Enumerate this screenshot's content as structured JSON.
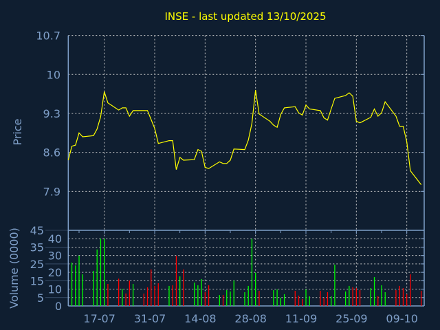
{
  "title": "INSE - last updated 13/10/2025",
  "colors": {
    "background": "#0f1e30",
    "axis": "#7f9fc8",
    "text": "#7f9fc8",
    "grid": "#c8c8c8",
    "price_line": "#ffff00",
    "title": "#ffff00",
    "volume_up": "#00ff00",
    "volume_down": "#ff0000"
  },
  "chart_data": [
    {
      "type": "line",
      "title": "INSE - last updated 13/10/2025",
      "ylabel": "Price",
      "ylim": [
        7.2,
        10.7
      ],
      "yticks": [
        "10.7",
        "10",
        "9.3",
        "8.6",
        "7.9"
      ],
      "ytick_values": [
        10.7,
        10.0,
        9.3,
        8.6,
        7.9
      ],
      "grid": true,
      "x": [
        "2025-07-07",
        "2025-07-08",
        "2025-07-09",
        "2025-07-10",
        "2025-07-11",
        "2025-07-14",
        "2025-07-15",
        "2025-07-16",
        "2025-07-17",
        "2025-07-18",
        "2025-07-21",
        "2025-07-22",
        "2025-07-23",
        "2025-07-24",
        "2025-07-25",
        "2025-07-28",
        "2025-07-29",
        "2025-07-30",
        "2025-07-31",
        "2025-08-01",
        "2025-08-04",
        "2025-08-05",
        "2025-08-06",
        "2025-08-07",
        "2025-08-08",
        "2025-08-11",
        "2025-08-12",
        "2025-08-13",
        "2025-08-14",
        "2025-08-15",
        "2025-08-18",
        "2025-08-19",
        "2025-08-20",
        "2025-08-21",
        "2025-08-22",
        "2025-08-25",
        "2025-08-26",
        "2025-08-27",
        "2025-08-28",
        "2025-08-29",
        "2025-09-01",
        "2025-09-02",
        "2025-09-03",
        "2025-09-04",
        "2025-09-05",
        "2025-09-08",
        "2025-09-09",
        "2025-09-10",
        "2025-09-11",
        "2025-09-12",
        "2025-09-15",
        "2025-09-16",
        "2025-09-17",
        "2025-09-18",
        "2025-09-19",
        "2025-09-22",
        "2025-09-23",
        "2025-09-24",
        "2025-09-25",
        "2025-09-26",
        "2025-09-29",
        "2025-09-30",
        "2025-10-01",
        "2025-10-02",
        "2025-10-03",
        "2025-10-06",
        "2025-10-07",
        "2025-10-08",
        "2025-10-09",
        "2025-10-10",
        "2025-10-13"
      ],
      "values": [
        8.46,
        8.71,
        8.73,
        8.95,
        8.88,
        8.9,
        9.02,
        9.24,
        9.69,
        9.49,
        9.36,
        9.4,
        9.4,
        9.25,
        9.35,
        9.35,
        9.35,
        9.19,
        9.03,
        8.76,
        8.81,
        8.81,
        8.29,
        8.51,
        8.46,
        8.47,
        8.65,
        8.62,
        8.33,
        8.31,
        8.43,
        8.4,
        8.4,
        8.46,
        8.66,
        8.65,
        8.82,
        9.12,
        9.72,
        9.29,
        9.16,
        9.09,
        9.05,
        9.28,
        9.4,
        9.42,
        9.31,
        9.27,
        9.45,
        9.38,
        9.35,
        9.22,
        9.18,
        9.38,
        9.57,
        9.62,
        9.67,
        9.61,
        9.16,
        9.13,
        9.23,
        9.38,
        9.25,
        9.31,
        9.51,
        9.25,
        9.07,
        9.07,
        8.79,
        8.27,
        8.02
      ]
    },
    {
      "type": "bar",
      "ylabel": "Volume (0000)",
      "ylim": [
        0,
        45
      ],
      "yticks": [
        "0",
        "5",
        "10",
        "15",
        "20",
        "25",
        "30",
        "35",
        "40",
        "45"
      ],
      "ytick_values": [
        0,
        5,
        10,
        15,
        20,
        25,
        30,
        35,
        40,
        45
      ],
      "xticks": [
        "17-07",
        "31-07",
        "14-08",
        "28-08",
        "11-09",
        "25-09",
        "09-10"
      ],
      "xtick_dates": [
        "2025-07-17",
        "2025-07-31",
        "2025-08-14",
        "2025-08-28",
        "2025-09-11",
        "2025-09-25",
        "2025-10-09"
      ],
      "grid": true,
      "bars": [
        {
          "date": "2025-07-08",
          "value": 25.8,
          "dir": "up"
        },
        {
          "date": "2025-07-09",
          "value": 24.1,
          "dir": "up"
        },
        {
          "date": "2025-07-10",
          "value": 29.9,
          "dir": "up"
        },
        {
          "date": "2025-07-11",
          "value": 18.8,
          "dir": "up"
        },
        {
          "date": "2025-07-14",
          "value": 20.9,
          "dir": "up"
        },
        {
          "date": "2025-07-15",
          "value": 33.6,
          "dir": "up"
        },
        {
          "date": "2025-07-16",
          "value": 40,
          "dir": "up"
        },
        {
          "date": "2025-07-17",
          "value": 40,
          "dir": "up"
        },
        {
          "date": "2025-07-18",
          "value": 13.1,
          "dir": "down"
        },
        {
          "date": "2025-07-21",
          "value": 16.2,
          "dir": "down"
        },
        {
          "date": "2025-07-22",
          "value": 10.2,
          "dir": "up"
        },
        {
          "date": "2025-07-23",
          "value": 7.4,
          "dir": "down"
        },
        {
          "date": "2025-07-24",
          "value": 15.1,
          "dir": "down"
        },
        {
          "date": "2025-07-25",
          "value": 13.1,
          "dir": "up"
        },
        {
          "date": "2025-07-28",
          "value": 7.4,
          "dir": "down"
        },
        {
          "date": "2025-07-29",
          "value": 11.1,
          "dir": "down"
        },
        {
          "date": "2025-07-30",
          "value": 21.7,
          "dir": "down"
        },
        {
          "date": "2025-07-31",
          "value": 11.9,
          "dir": "down"
        },
        {
          "date": "2025-08-01",
          "value": 13.5,
          "dir": "down"
        },
        {
          "date": "2025-08-04",
          "value": 11.9,
          "dir": "up"
        },
        {
          "date": "2025-08-05",
          "value": 12.3,
          "dir": "down"
        },
        {
          "date": "2025-08-06",
          "value": 29.9,
          "dir": "down"
        },
        {
          "date": "2025-08-07",
          "value": 17.6,
          "dir": "up"
        },
        {
          "date": "2025-08-08",
          "value": 21.7,
          "dir": "down"
        },
        {
          "date": "2025-08-11",
          "value": 13.9,
          "dir": "up"
        },
        {
          "date": "2025-08-12",
          "value": 12.3,
          "dir": "up"
        },
        {
          "date": "2025-08-13",
          "value": 16,
          "dir": "up"
        },
        {
          "date": "2025-08-14",
          "value": 8.2,
          "dir": "down"
        },
        {
          "date": "2025-08-15",
          "value": 12.3,
          "dir": "down"
        },
        {
          "date": "2025-08-18",
          "value": 6.5,
          "dir": "up"
        },
        {
          "date": "2025-08-19",
          "value": 6.5,
          "dir": "down"
        },
        {
          "date": "2025-08-20",
          "value": 9.4,
          "dir": "up"
        },
        {
          "date": "2025-08-21",
          "value": 8.6,
          "dir": "up"
        },
        {
          "date": "2025-08-22",
          "value": 15.1,
          "dir": "up"
        },
        {
          "date": "2025-08-25",
          "value": 8.2,
          "dir": "up"
        },
        {
          "date": "2025-08-26",
          "value": 11.9,
          "dir": "up"
        },
        {
          "date": "2025-08-27",
          "value": 40,
          "dir": "up"
        },
        {
          "date": "2025-08-28",
          "value": 19.8,
          "dir": "up"
        },
        {
          "date": "2025-08-29",
          "value": 9.0,
          "dir": "down"
        },
        {
          "date": "2025-09-02",
          "value": 9.4,
          "dir": "up"
        },
        {
          "date": "2025-09-03",
          "value": 9.8,
          "dir": "up"
        },
        {
          "date": "2025-09-04",
          "value": 4.9,
          "dir": "up"
        },
        {
          "date": "2025-09-05",
          "value": 7.0,
          "dir": "up"
        },
        {
          "date": "2025-09-08",
          "value": 9.0,
          "dir": "down"
        },
        {
          "date": "2025-09-09",
          "value": 6.1,
          "dir": "down"
        },
        {
          "date": "2025-09-10",
          "value": 4.1,
          "dir": "down"
        },
        {
          "date": "2025-09-11",
          "value": 9.8,
          "dir": "up"
        },
        {
          "date": "2025-09-12",
          "value": 5.7,
          "dir": "up"
        },
        {
          "date": "2025-09-15",
          "value": 9.0,
          "dir": "down"
        },
        {
          "date": "2025-09-16",
          "value": 4.9,
          "dir": "down"
        },
        {
          "date": "2025-09-17",
          "value": 8.2,
          "dir": "down"
        },
        {
          "date": "2025-09-18",
          "value": 5.7,
          "dir": "up"
        },
        {
          "date": "2025-09-19",
          "value": 24.6,
          "dir": "up"
        },
        {
          "date": "2025-09-22",
          "value": 8.6,
          "dir": "up"
        },
        {
          "date": "2025-09-23",
          "value": 11.9,
          "dir": "up"
        },
        {
          "date": "2025-09-24",
          "value": 11.1,
          "dir": "down"
        },
        {
          "date": "2025-09-25",
          "value": 10.6,
          "dir": "down"
        },
        {
          "date": "2025-09-26",
          "value": 9.4,
          "dir": "down"
        },
        {
          "date": "2025-09-29",
          "value": 10.6,
          "dir": "up"
        },
        {
          "date": "2025-09-30",
          "value": 17.2,
          "dir": "up"
        },
        {
          "date": "2025-10-01",
          "value": 5.7,
          "dir": "down"
        },
        {
          "date": "2025-10-02",
          "value": 12.3,
          "dir": "up"
        },
        {
          "date": "2025-10-03",
          "value": 8.2,
          "dir": "up"
        },
        {
          "date": "2025-10-06",
          "value": 9.4,
          "dir": "down"
        },
        {
          "date": "2025-10-07",
          "value": 11.9,
          "dir": "down"
        },
        {
          "date": "2025-10-08",
          "value": 10.6,
          "dir": "down"
        },
        {
          "date": "2025-10-09",
          "value": 7.0,
          "dir": "down"
        },
        {
          "date": "2025-10-10",
          "value": 18.8,
          "dir": "down"
        },
        {
          "date": "2025-10-13",
          "value": 9.0,
          "dir": "down"
        }
      ]
    }
  ]
}
